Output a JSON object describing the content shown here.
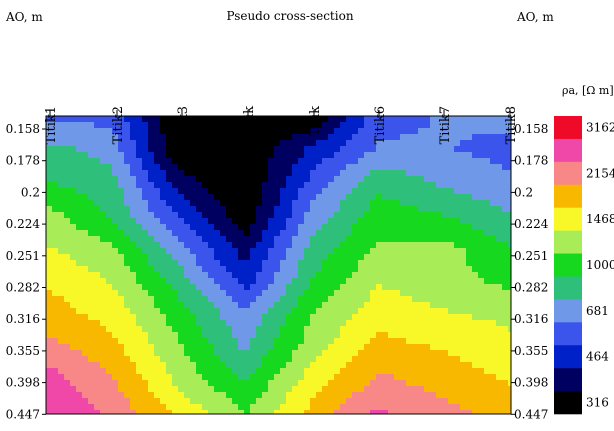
{
  "chart_data": {
    "type": "heatmap",
    "title": "Pseudo cross-section",
    "left_axis_label": "AO, m",
    "right_axis_label": "AO, m",
    "x_categories": [
      "Titik1",
      "Titik2",
      "Titik3",
      "Titik",
      "Titik",
      "Titik6",
      "Titik7",
      "Titik8"
    ],
    "y_ticks": [
      "0.158",
      "0.178",
      "0.2",
      "0.224",
      "0.251",
      "0.282",
      "0.316",
      "0.355",
      "0.398",
      "0.447"
    ],
    "colorbar": {
      "label": "ρa, [Ω m]",
      "tick_labels": [
        "3162",
        "2154",
        "1468",
        "1000",
        "681",
        "464",
        "316"
      ],
      "levels": [
        {
          "value": 316,
          "color": "#000000"
        },
        {
          "value": 383,
          "color": "#000060"
        },
        {
          "value": 464,
          "color": "#0020c8"
        },
        {
          "value": 562,
          "color": "#3b55ec"
        },
        {
          "value": 681,
          "color": "#6f98e8"
        },
        {
          "value": 825,
          "color": "#2ec07a"
        },
        {
          "value": 1000,
          "color": "#16d81e"
        },
        {
          "value": 1211,
          "color": "#a8ec58"
        },
        {
          "value": 1468,
          "color": "#f8f828"
        },
        {
          "value": 1778,
          "color": "#f8b800"
        },
        {
          "value": 2154,
          "color": "#f88888"
        },
        {
          "value": 2610,
          "color": "#f048a8"
        },
        {
          "value": 3162,
          "color": "#ee0a28"
        }
      ]
    },
    "grid_rows": [
      [
        630,
        650,
        316,
        316,
        316,
        640,
        690,
        720
      ],
      [
        880,
        760,
        316,
        316,
        480,
        700,
        690,
        640
      ],
      [
        1000,
        880,
        420,
        316,
        600,
        950,
        790,
        700
      ],
      [
        1300,
        980,
        560,
        330,
        730,
        1100,
        1000,
        840
      ],
      [
        1500,
        1250,
        720,
        420,
        880,
        1250,
        1300,
        1000
      ],
      [
        1750,
        1450,
        930,
        520,
        1000,
        1450,
        1300,
        1150
      ],
      [
        1950,
        1650,
        1100,
        700,
        1200,
        1650,
        1500,
        1400
      ],
      [
        2300,
        1900,
        1250,
        800,
        1350,
        1900,
        1750,
        1550
      ],
      [
        2900,
        2200,
        1400,
        1000,
        1600,
        2250,
        2000,
        1750
      ],
      [
        3162,
        2500,
        1700,
        1200,
        1900,
        2700,
        2300,
        2000
      ]
    ]
  }
}
